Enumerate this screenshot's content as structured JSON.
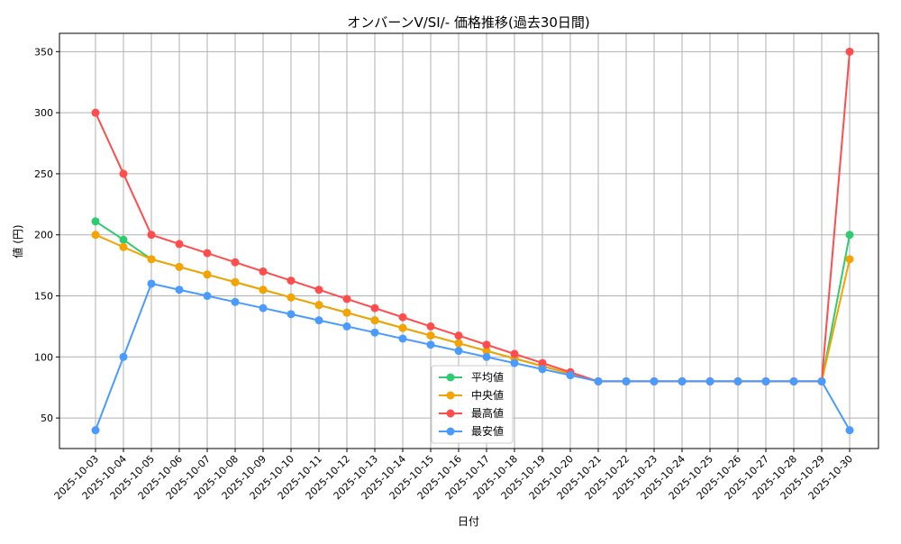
{
  "chart_data": {
    "type": "line",
    "title": "オンバーンV/SI/- 価格推移(過去30日間)",
    "xlabel": "日付",
    "ylabel": "値 (円)",
    "ylim": [
      25,
      365
    ],
    "yticks": [
      50,
      100,
      150,
      200,
      250,
      300,
      350
    ],
    "grid": true,
    "legend_position": "bottom-center",
    "x": [
      "2025-10-03",
      "2025-10-04",
      "2025-10-05",
      "2025-10-06",
      "2025-10-07",
      "2025-10-08",
      "2025-10-09",
      "2025-10-10",
      "2025-10-11",
      "2025-10-12",
      "2025-10-13",
      "2025-10-14",
      "2025-10-15",
      "2025-10-16",
      "2025-10-17",
      "2025-10-18",
      "2025-10-19",
      "2025-10-20",
      "2025-10-21",
      "2025-10-22",
      "2025-10-23",
      "2025-10-24",
      "2025-10-25",
      "2025-10-26",
      "2025-10-27",
      "2025-10-28",
      "2025-10-29",
      "2025-10-30"
    ],
    "series": [
      {
        "name": "平均値",
        "color": "#2ecc71",
        "values": [
          211,
          196,
          180,
          173.75,
          167.5,
          161.25,
          155,
          148.75,
          142.5,
          136.25,
          130,
          123.75,
          117.5,
          111.25,
          105,
          98.75,
          92.5,
          86.25,
          80,
          80,
          80,
          80,
          80,
          80,
          80,
          80,
          80,
          200
        ]
      },
      {
        "name": "中央値",
        "color": "#f5a300",
        "values": [
          200,
          190,
          180,
          173.75,
          167.5,
          161.25,
          155,
          148.75,
          142.5,
          136.25,
          130,
          123.75,
          117.5,
          111.25,
          105,
          98.75,
          92.5,
          86.25,
          80,
          80,
          80,
          80,
          80,
          80,
          80,
          80,
          80,
          180
        ]
      },
      {
        "name": "最高値",
        "color": "#ff4d4d",
        "values": [
          300,
          250,
          200,
          192.5,
          185,
          177.5,
          170,
          162.5,
          155,
          147.5,
          140,
          132.5,
          125,
          117.5,
          110,
          102.5,
          95,
          87.5,
          80,
          80,
          80,
          80,
          80,
          80,
          80,
          80,
          80,
          350
        ]
      },
      {
        "name": "最安値",
        "color": "#4a9bff",
        "values": [
          40,
          100,
          160,
          155,
          150,
          145,
          140,
          135,
          130,
          125,
          120,
          115,
          110,
          105,
          100,
          95,
          90,
          85,
          80,
          80,
          80,
          80,
          80,
          80,
          80,
          80,
          80,
          40
        ]
      }
    ]
  }
}
